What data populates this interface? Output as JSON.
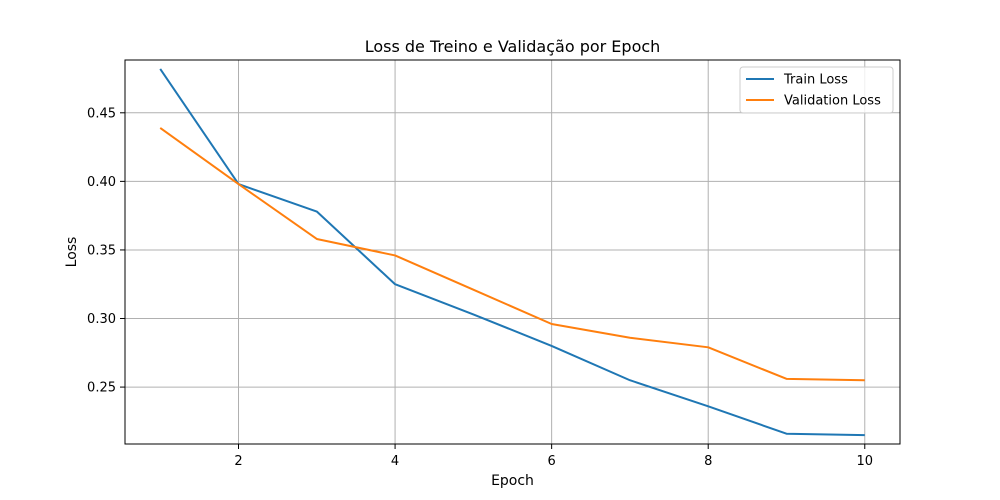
{
  "chart_data": {
    "type": "line",
    "title": "Loss de Treino e Validação por Epoch",
    "xlabel": "Epoch",
    "ylabel": "Loss",
    "x": [
      1,
      2,
      3,
      4,
      5,
      6,
      7,
      8,
      9,
      10
    ],
    "xticks": [
      "2",
      "4",
      "6",
      "8",
      "10"
    ],
    "yticks": [
      "0.25",
      "0.30",
      "0.35",
      "0.40",
      "0.45"
    ],
    "xlim": [
      0.55,
      10.45
    ],
    "ylim": [
      0.2085,
      0.4885
    ],
    "grid": true,
    "legend_position": "top-right",
    "series": [
      {
        "name": "Train Loss",
        "color": "#1f77b4",
        "values": [
          0.482,
          0.398,
          0.378,
          0.325,
          0.303,
          0.28,
          0.255,
          0.236,
          0.216,
          0.215
        ]
      },
      {
        "name": "Validation Loss",
        "color": "#ff7f0e",
        "values": [
          0.439,
          0.398,
          0.358,
          0.346,
          0.321,
          0.296,
          0.286,
          0.279,
          0.256,
          0.255
        ]
      }
    ]
  }
}
